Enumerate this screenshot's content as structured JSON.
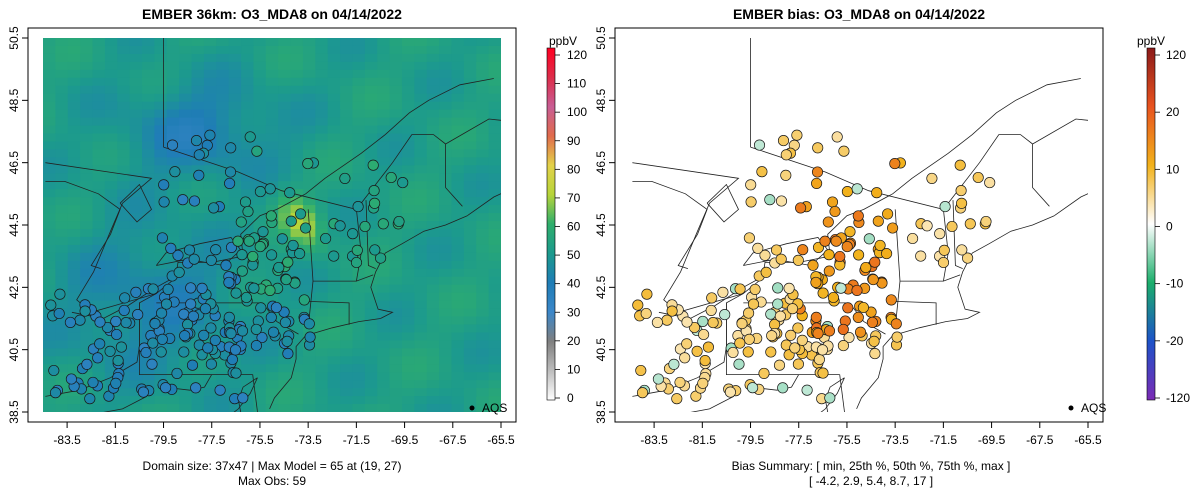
{
  "colors": {
    "ocean": "#36a77e",
    "land_line": "#222222",
    "background": "#ffffff"
  },
  "chart_data": [
    {
      "type": "heatmap",
      "title": "EMBER 36km: O3_MDA8 on 04/14/2022",
      "xlim": [
        -84.5,
        -65.5
      ],
      "ylim": [
        38.5,
        50.5
      ],
      "xticks": [
        "-83.5",
        "-81.5",
        "-79.5",
        "-77.5",
        "-75.5",
        "-73.5",
        "-71.5",
        "-69.5",
        "-67.5",
        "-65.5"
      ],
      "yticks": [
        "38.5",
        "40.5",
        "42.5",
        "44.5",
        "46.5",
        "48.5",
        "50.5"
      ],
      "grid": {
        "nx": 37,
        "ny": 47
      },
      "max_model": 65,
      "max_obs": 59,
      "legend_label": "AQS",
      "caption_line1": "Domain size: 37x47 | Max Model = 65 at (19, 27)",
      "caption_line2": "Max Obs: 59",
      "colorbar": {
        "unit": "ppbV",
        "ticks": [
          "0",
          "10",
          "20",
          "30",
          "40",
          "50",
          "60",
          "70",
          "80",
          "90",
          "100",
          "110",
          "120"
        ],
        "stops": [
          "#ffffff",
          "#bdbdbd",
          "#7f7f7f",
          "#3b87c9",
          "#1f7db6",
          "#1c9a8d",
          "#2fae6c",
          "#b7d43a",
          "#e3d24a",
          "#e06b4c",
          "#c85d94",
          "#dd2d4a",
          "#ff0022"
        ],
        "stop_values": [
          0,
          10,
          20,
          30,
          40,
          50,
          60,
          70,
          80,
          90,
          100,
          110,
          120
        ]
      }
    },
    {
      "type": "scatter",
      "title": "EMBER bias: O3_MDA8 on 04/14/2022",
      "xlim": [
        -84.5,
        -65.5
      ],
      "ylim": [
        38.5,
        50.5
      ],
      "xticks": [
        "-83.5",
        "-81.5",
        "-79.5",
        "-77.5",
        "-75.5",
        "-73.5",
        "-71.5",
        "-69.5",
        "-67.5",
        "-65.5"
      ],
      "yticks": [
        "38.5",
        "40.5",
        "42.5",
        "44.5",
        "46.5",
        "48.5",
        "50.5"
      ],
      "legend_label": "AQS",
      "bias_summary": {
        "min": -4.2,
        "p25": 2.9,
        "p50": 5.4,
        "p75": 8.7,
        "max": 17
      },
      "caption_line1": "Bias Summary: [ min, 25th %, 50th %, 75th %, max ]",
      "caption_line2": "[ -4.2,   2.9,   5.4,   8.7,   17 ]",
      "colorbar": {
        "unit": "ppbV",
        "ticks": [
          "120",
          "20",
          "10",
          "0",
          "-10",
          "-20",
          "-120"
        ],
        "stops": [
          "#8b1a1a",
          "#e8531f",
          "#f2b21b",
          "#ffffff",
          "#1bae6b",
          "#1d52c8",
          "#7b2bb5"
        ],
        "stop_values": [
          120,
          20,
          10,
          0,
          -10,
          -20,
          -120
        ]
      }
    }
  ]
}
